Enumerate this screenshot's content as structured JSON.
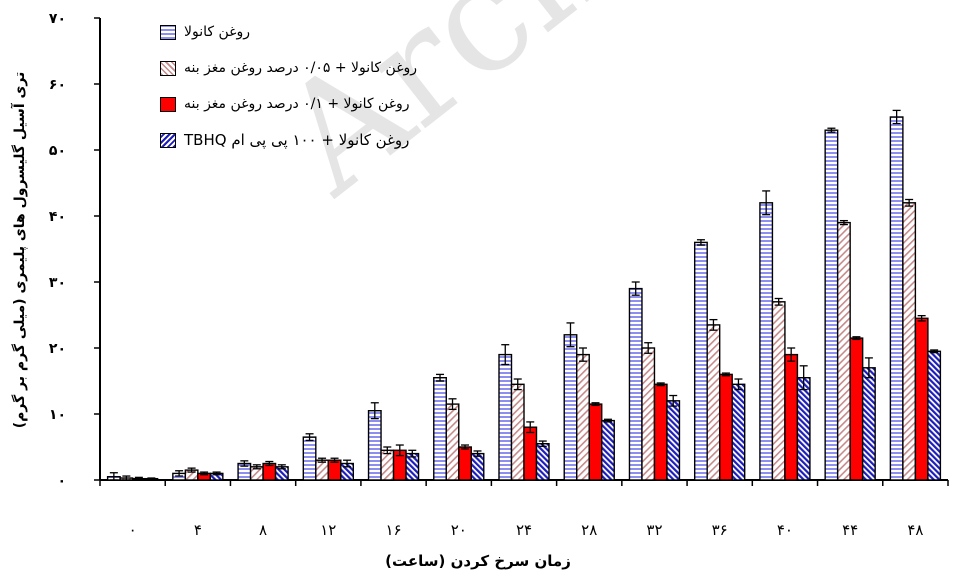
{
  "chart_data": {
    "type": "bar",
    "xlabel": "زمان سرخ کردن (ساعت)",
    "ylabel": "تری آسیل گلیسرول های  پلیمری (میلی گرم بر گرم)",
    "categories": [
      "۰",
      "۴",
      "۸",
      "۱۲",
      "۱۶",
      "۲۰",
      "۲۴",
      "۲۸",
      "۳۲",
      "۳۶",
      "۴۰",
      "۴۴",
      "۴۸"
    ],
    "ylim": [
      0,
      70
    ],
    "yticks": [
      0,
      10,
      20,
      30,
      40,
      50,
      60,
      70
    ],
    "ytick_labels": [
      "۰",
      "۱۰",
      "۲۰",
      "۳۰",
      "۴۰",
      "۵۰",
      "۶۰",
      "۷۰"
    ],
    "legend_position": "top-left",
    "grid": false,
    "series": [
      {
        "name": "روغن کانولا",
        "values": [
          0.5,
          1.0,
          2.5,
          6.5,
          10.5,
          15.5,
          19,
          22,
          29,
          36,
          42,
          53,
          55
        ],
        "errors": [
          0.6,
          0.4,
          0.4,
          0.5,
          1.2,
          0.5,
          1.5,
          1.8,
          1.0,
          0.4,
          1.8,
          0.3,
          1.0
        ],
        "color": "#8d8ff0",
        "pattern": "horizontal-stripes"
      },
      {
        "name": "روغن کانولا + ۰/۰۵ درصد روغن مغز بنه",
        "values": [
          0.3,
          1.5,
          2.0,
          3.0,
          4.5,
          11.5,
          14.5,
          19,
          20,
          23.5,
          27,
          39,
          42
        ],
        "errors": [
          0.3,
          0.3,
          0.3,
          0.3,
          0.5,
          0.8,
          0.8,
          1.0,
          0.8,
          0.8,
          0.5,
          0.3,
          0.5
        ],
        "color": "#c78a8a",
        "pattern": "diagonal-hatch"
      },
      {
        "name": "روغن کانولا  + ۰/۱ درصد روغن مغز بنه",
        "values": [
          0.2,
          1.0,
          2.5,
          3.0,
          4.5,
          5.0,
          8.0,
          11.5,
          14.5,
          16,
          19,
          21.5,
          24.5
        ],
        "errors": [
          0.2,
          0.2,
          0.3,
          0.3,
          0.8,
          0.3,
          0.8,
          0.2,
          0.2,
          0.2,
          1.0,
          0.2,
          0.4
        ],
        "color": "#ff0000",
        "pattern": "solid"
      },
      {
        "name": "روغن کانولا + ۱۰۰ پی پی ام TBHQ",
        "values": [
          0.2,
          1.0,
          2.0,
          2.5,
          4.0,
          4.0,
          5.5,
          9.0,
          12,
          14.5,
          15.5,
          17,
          19.5
        ],
        "errors": [
          0.1,
          0.2,
          0.3,
          0.5,
          0.5,
          0.4,
          0.4,
          0.2,
          0.8,
          0.8,
          1.8,
          1.5,
          0.2
        ],
        "color": "#1d1dbb",
        "pattern": "diagonal-dense"
      }
    ]
  },
  "watermark": "Archive"
}
